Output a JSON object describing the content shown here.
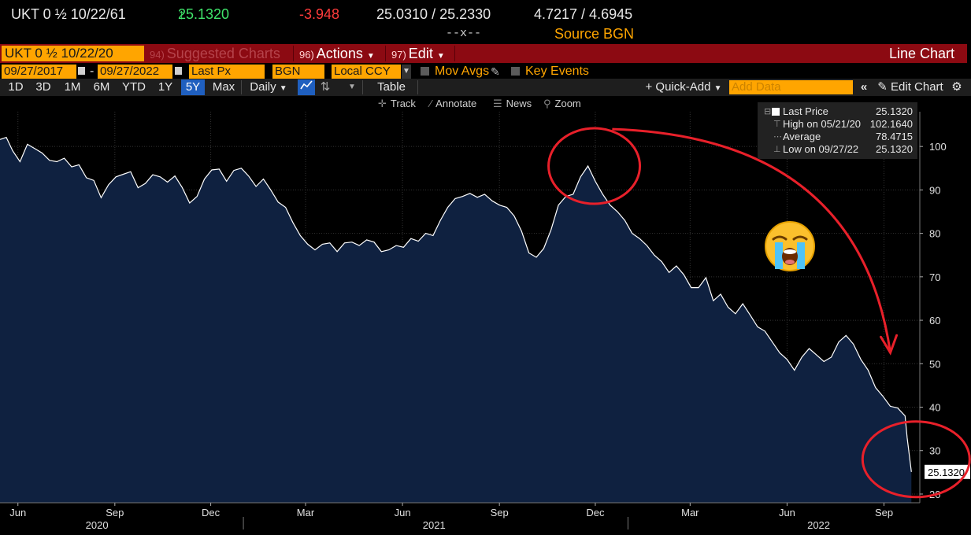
{
  "quote": {
    "ticker": "UKT 0 ½ 10/22/61",
    "last_arrow": "↑",
    "last": "25.1320",
    "change": "-3.948",
    "bid_ask": "25.0310 / 25.2330",
    "yield_bid_ask": "4.7217 / 4.6945",
    "time": "--x--",
    "source": "Source BGN"
  },
  "redbar": {
    "security": "UKT 0 ½ 10/22/20",
    "suggested_num": "94)",
    "suggested": "Suggested Charts",
    "actions_num": "96)",
    "actions": "Actions",
    "edit_num": "97)",
    "edit": "Edit",
    "chart_type": "Line Chart"
  },
  "row2": {
    "start_date": "09/27/2017",
    "end_date": "09/27/2022",
    "field": "Last Px",
    "source": "BGN",
    "currency": "Local CCY",
    "mov_avgs": "Mov Avgs",
    "key_events": "Key Events"
  },
  "periods": [
    "1D",
    "3D",
    "1M",
    "6M",
    "YTD",
    "1Y",
    "5Y",
    "Max"
  ],
  "selected_period": "5Y",
  "row3": {
    "frequency": "Daily",
    "table": "Table",
    "quick_add": "+ Quick-Add",
    "add_data_placeholder": "Add Data",
    "edit_chart": "Edit Chart"
  },
  "toolbar": {
    "track": "Track",
    "annotate": "Annotate",
    "news": "News",
    "zoom": "Zoom"
  },
  "legend": {
    "last_label": "Last Price",
    "last_value": "25.1320",
    "high_label": "High on 05/21/20",
    "high_value": "102.1640",
    "avg_label": "Average",
    "avg_value": "78.4715",
    "low_label": "Low on 09/27/22",
    "low_value": "25.1320"
  },
  "current_price_tag": "25.1320",
  "emoji": "loudly-crying-face",
  "colors": {
    "orange": "#ffa500",
    "red_bar": "#8c0a12",
    "area_fill": "#0f2140",
    "line": "#ffffff",
    "annotation": "#e8202a",
    "up": "#3fe36a",
    "down": "#ff3b3b"
  },
  "chart_data": {
    "type": "area",
    "title": "",
    "xlabel": "",
    "ylabel": "",
    "ylim": [
      18,
      108
    ],
    "yticks": [
      20,
      30,
      40,
      50,
      60,
      70,
      80,
      90,
      100
    ],
    "xlim": [
      "2020-05-15",
      "2022-10-05"
    ],
    "x_ticks": [
      {
        "label": "Jun",
        "date": "2020-06-01"
      },
      {
        "label": "Sep",
        "date": "2020-09-01"
      },
      {
        "label": "Dec",
        "date": "2020-12-01"
      },
      {
        "label": "Mar",
        "date": "2021-03-01"
      },
      {
        "label": "Jun",
        "date": "2021-06-01"
      },
      {
        "label": "Sep",
        "date": "2021-09-01"
      },
      {
        "label": "Dec",
        "date": "2021-12-01"
      },
      {
        "label": "Mar",
        "date": "2022-03-01"
      },
      {
        "label": "Jun",
        "date": "2022-06-01"
      },
      {
        "label": "Sep",
        "date": "2022-09-01"
      }
    ],
    "year_labels": [
      {
        "label": "2020",
        "date": "2020-08-15"
      },
      {
        "label": "2021",
        "date": "2021-07-01"
      },
      {
        "label": "2022",
        "date": "2022-07-01"
      }
    ],
    "year_dividers": [
      "2021-01-01",
      "2022-01-01"
    ],
    "grid": true,
    "legend_position": "top-right",
    "series": [
      {
        "name": "Last Price",
        "points": [
          [
            "2020-05-15",
            101.6
          ],
          [
            "2020-05-21",
            102.1
          ],
          [
            "2020-05-27",
            99.0
          ],
          [
            "2020-06-03",
            96.5
          ],
          [
            "2020-06-10",
            100.5
          ],
          [
            "2020-06-17",
            99.5
          ],
          [
            "2020-06-24",
            98.5
          ],
          [
            "2020-07-01",
            96.8
          ],
          [
            "2020-07-08",
            96.5
          ],
          [
            "2020-07-15",
            97.3
          ],
          [
            "2020-07-22",
            95.3
          ],
          [
            "2020-07-29",
            95.8
          ],
          [
            "2020-08-05",
            92.8
          ],
          [
            "2020-08-12",
            92.2
          ],
          [
            "2020-08-19",
            88.2
          ],
          [
            "2020-08-26",
            91.2
          ],
          [
            "2020-09-02",
            93.0
          ],
          [
            "2020-09-09",
            93.6
          ],
          [
            "2020-09-16",
            94.2
          ],
          [
            "2020-09-23",
            90.5
          ],
          [
            "2020-09-30",
            91.5
          ],
          [
            "2020-10-07",
            93.5
          ],
          [
            "2020-10-14",
            93.0
          ],
          [
            "2020-10-21",
            91.8
          ],
          [
            "2020-10-28",
            93.2
          ],
          [
            "2020-11-04",
            90.5
          ],
          [
            "2020-11-11",
            87.0
          ],
          [
            "2020-11-18",
            88.5
          ],
          [
            "2020-11-25",
            92.5
          ],
          [
            "2020-12-02",
            94.6
          ],
          [
            "2020-12-09",
            94.8
          ],
          [
            "2020-12-16",
            92.0
          ],
          [
            "2020-12-23",
            94.5
          ],
          [
            "2020-12-30",
            95.0
          ],
          [
            "2021-01-06",
            93.2
          ],
          [
            "2021-01-13",
            90.8
          ],
          [
            "2021-01-20",
            92.5
          ],
          [
            "2021-01-27",
            90.0
          ],
          [
            "2021-02-03",
            87.2
          ],
          [
            "2021-02-10",
            86.0
          ],
          [
            "2021-02-17",
            82.5
          ],
          [
            "2021-02-24",
            79.5
          ],
          [
            "2021-03-03",
            77.5
          ],
          [
            "2021-03-10",
            76.2
          ],
          [
            "2021-03-17",
            77.5
          ],
          [
            "2021-03-24",
            77.8
          ],
          [
            "2021-03-31",
            75.8
          ],
          [
            "2021-04-07",
            77.8
          ],
          [
            "2021-04-14",
            78.0
          ],
          [
            "2021-04-21",
            77.2
          ],
          [
            "2021-04-28",
            78.5
          ],
          [
            "2021-05-05",
            78.0
          ],
          [
            "2021-05-12",
            75.8
          ],
          [
            "2021-05-19",
            76.2
          ],
          [
            "2021-05-26",
            77.2
          ],
          [
            "2021-06-02",
            76.8
          ],
          [
            "2021-06-09",
            78.8
          ],
          [
            "2021-06-16",
            78.2
          ],
          [
            "2021-06-23",
            80.0
          ],
          [
            "2021-06-30",
            79.5
          ],
          [
            "2021-07-07",
            83.0
          ],
          [
            "2021-07-14",
            86.0
          ],
          [
            "2021-07-21",
            88.0
          ],
          [
            "2021-07-28",
            88.5
          ],
          [
            "2021-08-04",
            89.2
          ],
          [
            "2021-08-11",
            88.3
          ],
          [
            "2021-08-18",
            89.0
          ],
          [
            "2021-08-25",
            87.5
          ],
          [
            "2021-09-01",
            86.5
          ],
          [
            "2021-09-08",
            86.0
          ],
          [
            "2021-09-15",
            84.0
          ],
          [
            "2021-09-22",
            80.5
          ],
          [
            "2021-09-29",
            75.5
          ],
          [
            "2021-10-06",
            74.5
          ],
          [
            "2021-10-13",
            76.5
          ],
          [
            "2021-10-20",
            80.8
          ],
          [
            "2021-10-27",
            86.5
          ],
          [
            "2021-11-03",
            88.5
          ],
          [
            "2021-11-10",
            89.0
          ],
          [
            "2021-11-17",
            93.0
          ],
          [
            "2021-11-24",
            95.5
          ],
          [
            "2021-12-01",
            92.0
          ],
          [
            "2021-12-08",
            89.0
          ],
          [
            "2021-12-15",
            86.5
          ],
          [
            "2021-12-22",
            85.0
          ],
          [
            "2021-12-29",
            83.0
          ],
          [
            "2022-01-05",
            80.0
          ],
          [
            "2022-01-12",
            78.8
          ],
          [
            "2022-01-19",
            77.2
          ],
          [
            "2022-01-26",
            75.0
          ],
          [
            "2022-02-02",
            73.5
          ],
          [
            "2022-02-09",
            71.0
          ],
          [
            "2022-02-16",
            72.5
          ],
          [
            "2022-02-23",
            70.5
          ],
          [
            "2022-03-02",
            67.5
          ],
          [
            "2022-03-09",
            67.5
          ],
          [
            "2022-03-16",
            69.8
          ],
          [
            "2022-03-23",
            64.5
          ],
          [
            "2022-03-30",
            66.0
          ],
          [
            "2022-04-06",
            63.0
          ],
          [
            "2022-04-13",
            61.5
          ],
          [
            "2022-04-20",
            63.8
          ],
          [
            "2022-04-27",
            61.2
          ],
          [
            "2022-05-04",
            58.5
          ],
          [
            "2022-05-11",
            57.5
          ],
          [
            "2022-05-18",
            55.0
          ],
          [
            "2022-05-25",
            52.5
          ],
          [
            "2022-06-01",
            51.0
          ],
          [
            "2022-06-08",
            48.5
          ],
          [
            "2022-06-15",
            51.5
          ],
          [
            "2022-06-22",
            53.5
          ],
          [
            "2022-06-29",
            52.0
          ],
          [
            "2022-07-06",
            50.5
          ],
          [
            "2022-07-13",
            51.5
          ],
          [
            "2022-07-20",
            55.0
          ],
          [
            "2022-07-27",
            56.5
          ],
          [
            "2022-08-03",
            54.5
          ],
          [
            "2022-08-10",
            51.0
          ],
          [
            "2022-08-17",
            48.5
          ],
          [
            "2022-08-24",
            44.5
          ],
          [
            "2022-08-31",
            42.5
          ],
          [
            "2022-09-07",
            40.2
          ],
          [
            "2022-09-14",
            39.8
          ],
          [
            "2022-09-21",
            38.0
          ],
          [
            "2022-09-23",
            33.0
          ],
          [
            "2022-09-27",
            25.1
          ]
        ]
      }
    ],
    "annotations": [
      {
        "type": "circle",
        "note": "peak",
        "date": "2021-11-24",
        "value": 95.5
      },
      {
        "type": "circle",
        "note": "latest",
        "date": "2022-09-27",
        "value": 28
      },
      {
        "type": "arrow",
        "from": [
          "2022-01-01",
          100
        ],
        "to": [
          "2022-09-10",
          50
        ]
      }
    ]
  }
}
